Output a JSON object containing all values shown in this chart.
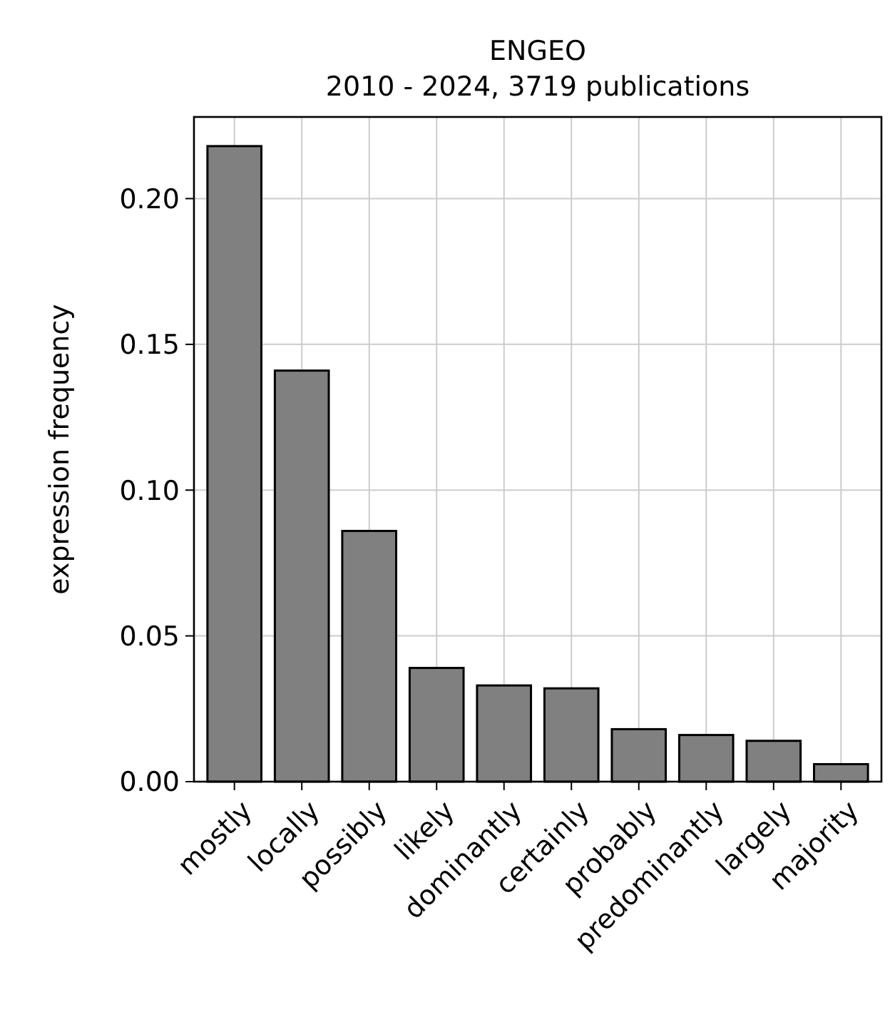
{
  "chart_data": {
    "type": "bar",
    "title": "ENGEO\n2010 - 2024, 3719 publications",
    "ylabel": "expression frequency",
    "categories": [
      "mostly",
      "locally",
      "possibly",
      "likely",
      "dominantly",
      "certainly",
      "probably",
      "predominantly",
      "largely",
      "majority"
    ],
    "values": [
      0.218,
      0.141,
      0.086,
      0.039,
      0.033,
      0.032,
      0.018,
      0.016,
      0.014,
      0.006
    ],
    "color": "#808080",
    "ylim": [
      0,
      0.228
    ],
    "yticks": [
      {
        "value": 0,
        "label": "0.00"
      },
      {
        "value": 0.05,
        "label": "0.05"
      },
      {
        "value": 0.1,
        "label": "0.10"
      },
      {
        "value": 0.15,
        "label": "0.15"
      },
      {
        "value": 0.2,
        "label": "0.20"
      }
    ],
    "grid": true
  }
}
